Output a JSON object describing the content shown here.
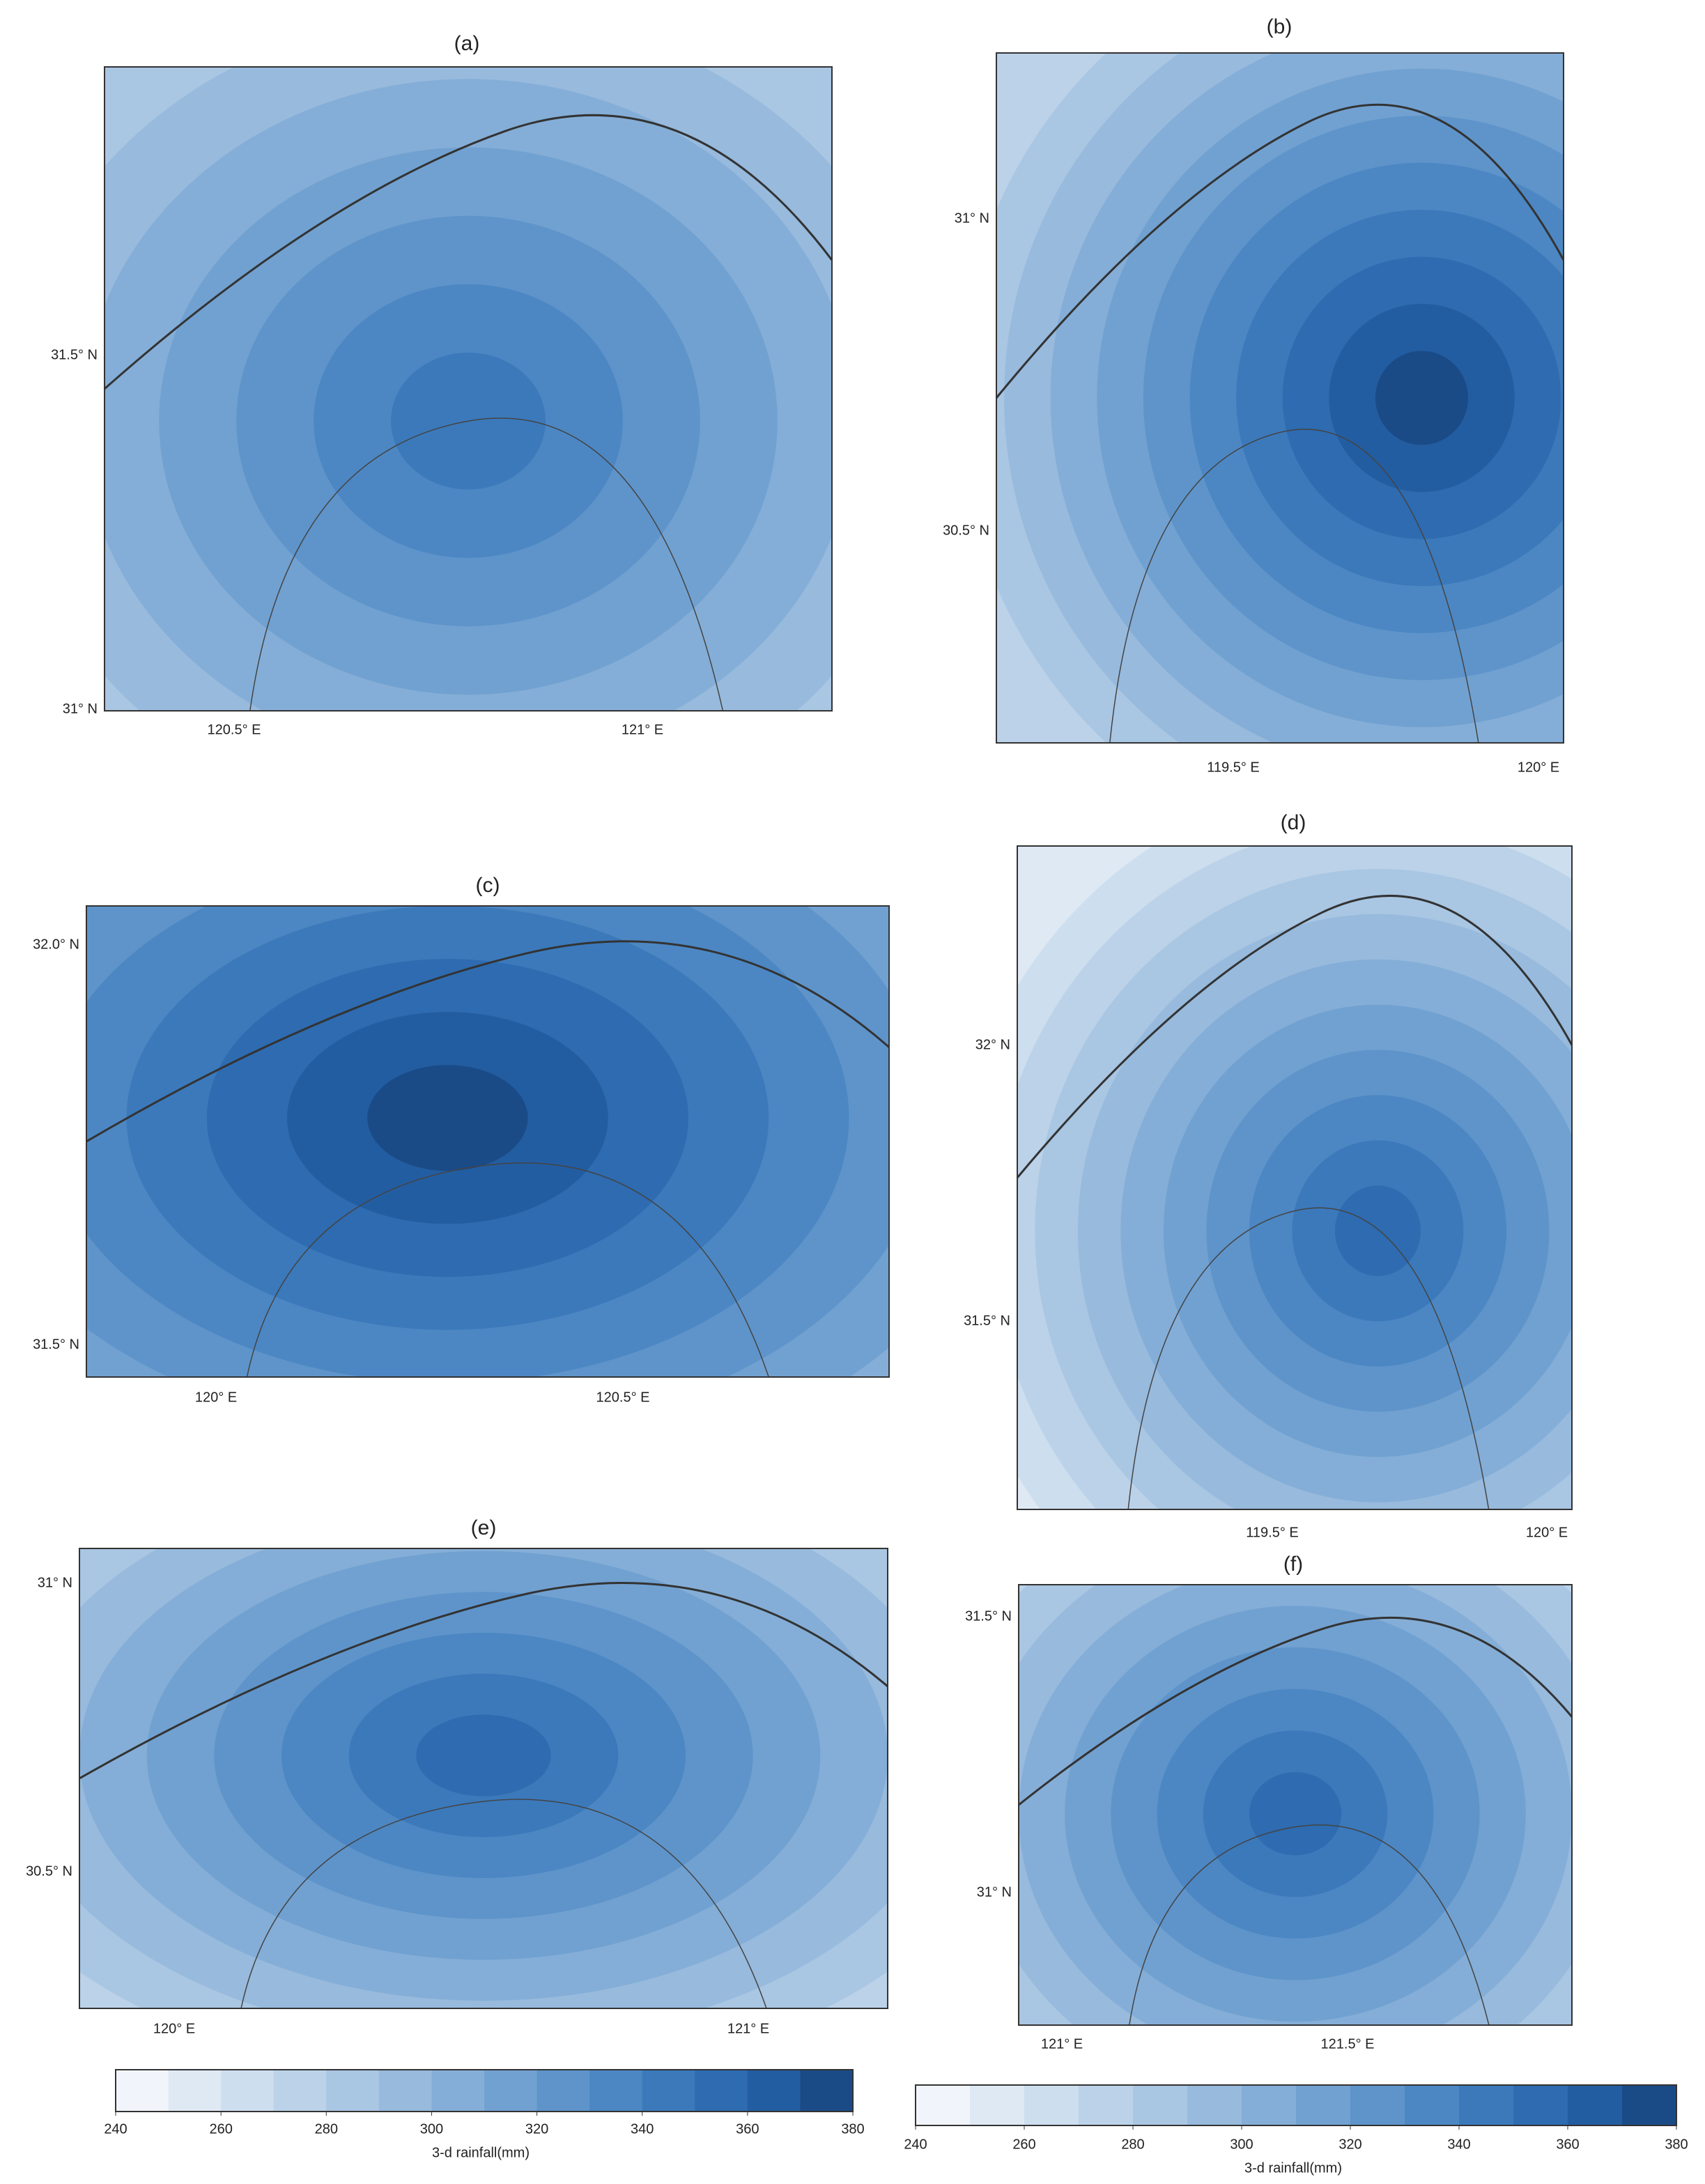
{
  "colors": [
    "#f1f5fb",
    "#dfe9f4",
    "#cddeef",
    "#bbd2e9",
    "#a9c6e3",
    "#97badd",
    "#84aed7",
    "#71a1d1",
    "#5e94ca",
    "#4c87c3",
    "#3b79bb",
    "#2e6bb0",
    "#235da1",
    "#1a4b87"
  ],
  "panels": [
    {
      "label": "(a)",
      "yticks": [
        "31.5° N",
        "31° N"
      ],
      "xticks": [
        "120.5° E",
        "121° E"
      ]
    },
    {
      "label": "(b)",
      "yticks": [
        "31° N",
        "30.5° N"
      ],
      "xticks": [
        "119.5° E",
        "120° E"
      ]
    },
    {
      "label": "(c)",
      "yticks": [
        "32.0° N",
        "31.5° N"
      ],
      "xticks": [
        "120° E",
        "120.5° E"
      ]
    },
    {
      "label": "(d)",
      "yticks": [
        "32° N",
        "31.5° N"
      ],
      "xticks": [
        "119.5° E",
        "120° E"
      ]
    },
    {
      "label": "(e)",
      "yticks": [
        "31° N",
        "30.5° N"
      ],
      "xticks": [
        "120° E",
        "121° E"
      ]
    },
    {
      "label": "(f)",
      "yticks": [
        "31.5° N",
        "31° N"
      ],
      "xticks": [
        "121° E",
        "121.5° E"
      ]
    }
  ],
  "colorbars": [
    {
      "ticks": [
        240,
        260,
        280,
        300,
        320,
        340,
        360,
        380
      ],
      "label": "3-d rainfall(mm)"
    },
    {
      "ticks": [
        240,
        260,
        280,
        300,
        320,
        340,
        360,
        380
      ],
      "label": "3-d rainfall(mm)"
    }
  ]
}
